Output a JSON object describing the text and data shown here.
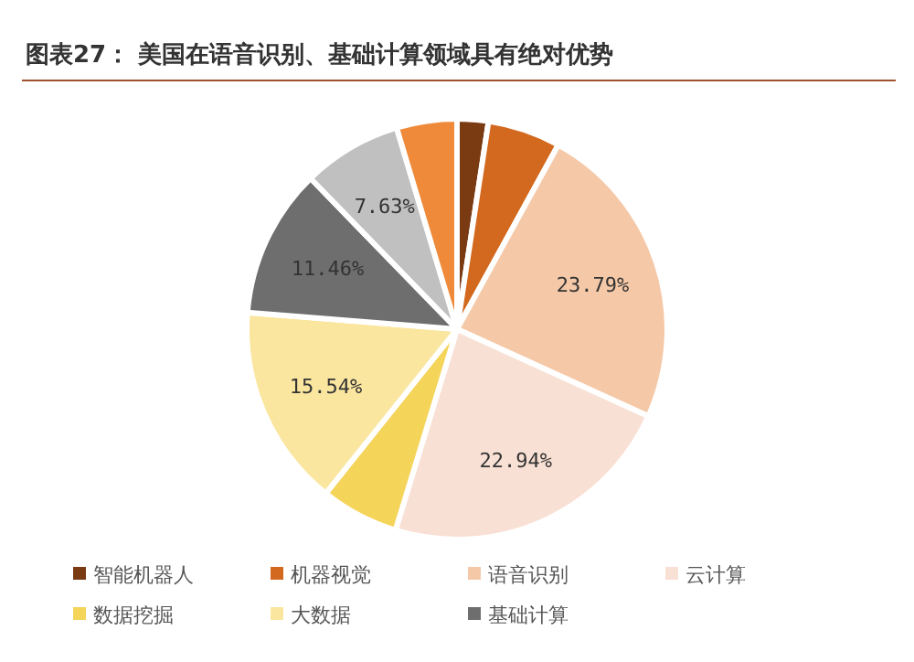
{
  "chart_data": {
    "type": "pie",
    "title": "图表27：  美国在语音识别、基础计算领域具有绝对优势",
    "categories": [
      "智能机器人",
      "机器视觉",
      "语音识别",
      "云计算",
      "数据挖掘",
      "大数据",
      "基础计算",
      null,
      null
    ],
    "values": [
      2.4,
      5.6,
      23.79,
      22.94,
      6.0,
      15.54,
      11.46,
      7.63,
      4.64
    ],
    "colors": [
      "#7a3a12",
      "#d2691e",
      "#f5c9a8",
      "#f9e0d4",
      "#f5d45a",
      "#fbe6a0",
      "#6e6e6e",
      "#c0c0c0",
      "#ee8a3a"
    ],
    "value_labels": [
      null,
      null,
      "23.79%",
      "22.94%",
      null,
      "15.54%",
      "11.46%",
      "7.63%",
      null
    ],
    "legend": "bottom"
  }
}
